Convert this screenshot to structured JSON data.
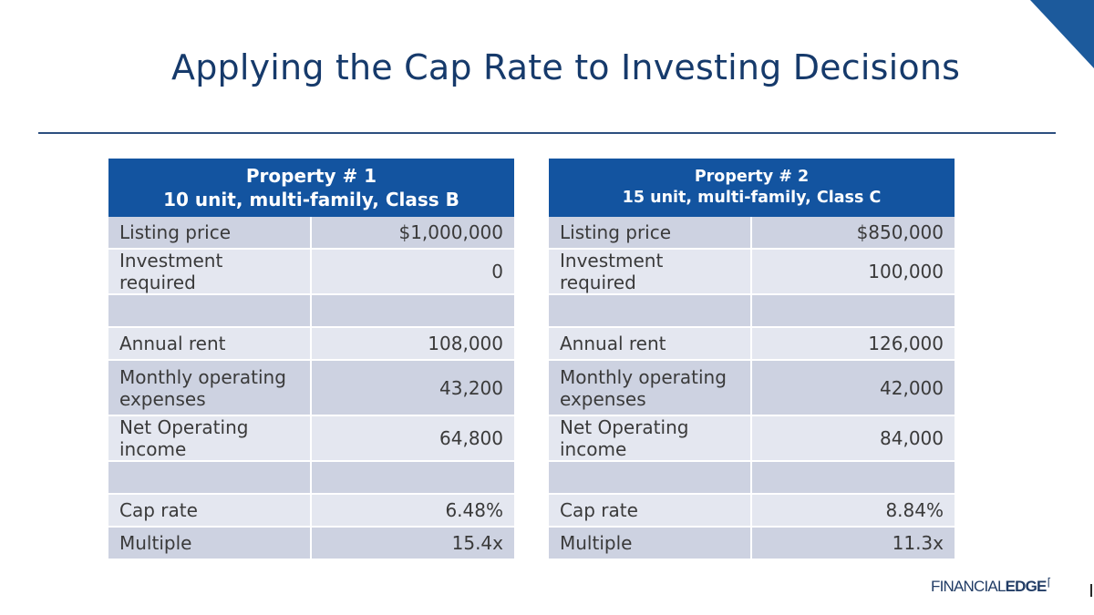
{
  "slide": {
    "title": "Applying the Cap Rate to Investing Decisions",
    "brand_part1": "FINANCIAL",
    "brand_part2": "EDGE",
    "colors": {
      "header_blue": "#1354a0",
      "title_navy": "#163a6b",
      "row_light": "#e4e7f0",
      "row_dark": "#cdd2e1"
    }
  },
  "property1": {
    "header_line1": "Property # 1",
    "header_line2": "10 unit, multi-family,  Class B",
    "rows": [
      {
        "label": "Listing price",
        "value": "$1,000,000"
      },
      {
        "label": "Investment required",
        "value": "0"
      },
      {
        "label": "",
        "value": ""
      },
      {
        "label": "Annual rent",
        "value": "108,000"
      },
      {
        "label": "Monthly operating expenses",
        "value": "43,200"
      },
      {
        "label": "Net Operating income",
        "value": "64,800"
      },
      {
        "label": "",
        "value": ""
      },
      {
        "label": "Cap rate",
        "value": "6.48%"
      },
      {
        "label": "Multiple",
        "value": "15.4x"
      }
    ]
  },
  "property2": {
    "header_line1": "Property # 2",
    "header_line2": "15 unit, multi-family,  Class C",
    "rows": [
      {
        "label": "Listing price",
        "value": "$850,000"
      },
      {
        "label": "Investment required",
        "value": "100,000"
      },
      {
        "label": "",
        "value": ""
      },
      {
        "label": "Annual rent",
        "value": "126,000"
      },
      {
        "label": "Monthly operating expenses",
        "value": "42,000"
      },
      {
        "label": "Net Operating income",
        "value": "84,000"
      },
      {
        "label": "",
        "value": ""
      },
      {
        "label": "Cap rate",
        "value": "8.84%"
      },
      {
        "label": "Multiple",
        "value": "11.3x"
      }
    ]
  }
}
